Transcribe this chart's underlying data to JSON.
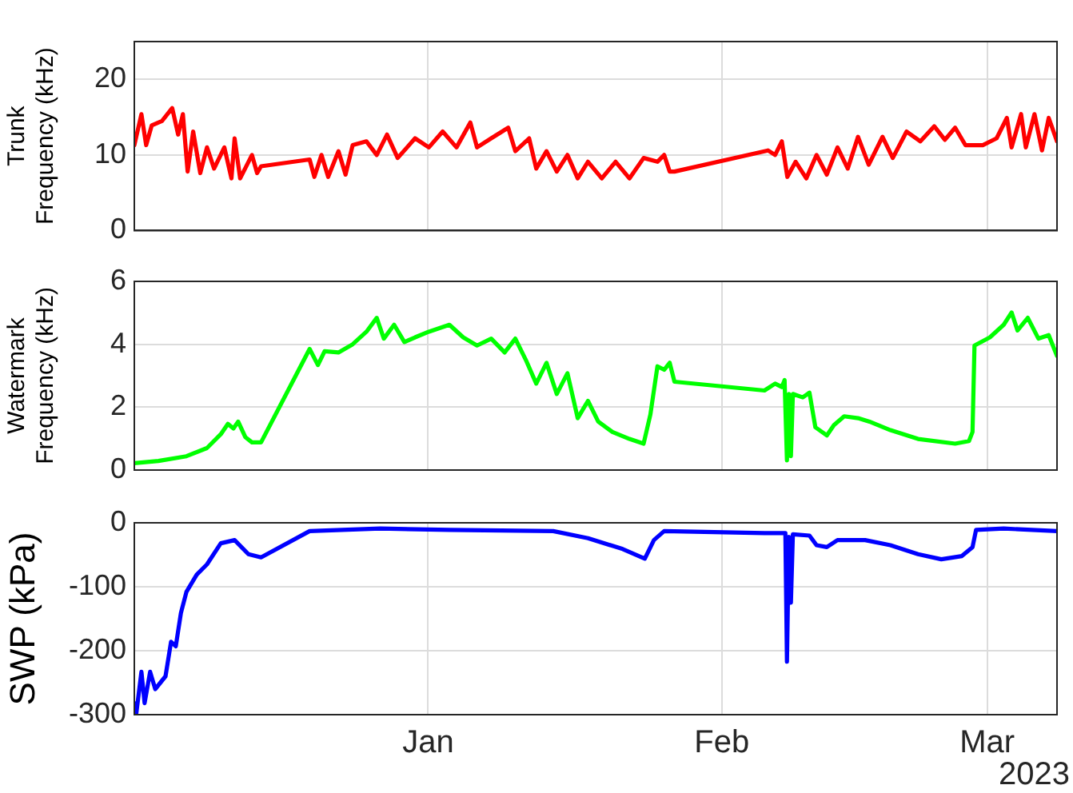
{
  "chart_data": [
    {
      "type": "line",
      "ylabel": "Trunk Frequency (kHz)",
      "xlim": [
        "2022-12-01",
        "2023-03-08T09:00"
      ],
      "xticks": [
        {
          "value": "2023-01-01",
          "label": null
        },
        {
          "value": "2023-02-01",
          "label": null
        },
        {
          "value": "2023-03-01",
          "label": null
        }
      ],
      "ylim": [
        0,
        25
      ],
      "yticks": [
        0,
        10,
        20
      ],
      "grid": true,
      "legend": false,
      "tick_labels": "y",
      "series": [
        {
          "color": "#ff0000",
          "x": [
            "2022-12-01T00:00",
            "2022-12-01T18:00",
            "2022-12-02T06:00",
            "2022-12-02T20:00",
            "2022-12-03T22:00",
            "2022-12-05T00:00",
            "2022-12-05T15:00",
            "2022-12-06T03:00",
            "2022-12-06T15:00",
            "2022-12-07T05:00",
            "2022-12-07T23:00",
            "2022-12-08T16:00",
            "2022-12-09T10:00",
            "2022-12-10T12:00",
            "2022-12-11T06:00",
            "2022-12-11T14:00",
            "2022-12-12T04:00",
            "2022-12-13T10:00",
            "2022-12-13T23:00",
            "2022-12-14T09:00",
            "2022-12-19T12:00",
            "2022-12-20T00:00",
            "2022-12-20T18:00",
            "2022-12-21T11:00",
            "2022-12-22T13:00",
            "2022-12-23T07:00",
            "2022-12-24T01:00",
            "2022-12-25T12:00",
            "2022-12-26T14:00",
            "2022-12-27T16:00",
            "2022-12-28T19:00",
            "2022-12-30T15:00",
            "2023-01-01T02:00",
            "2023-01-02T13:00",
            "2023-01-04T00:00",
            "2023-01-05T11:00",
            "2023-01-06T04:00",
            "2023-01-07T16:00",
            "2023-01-09T11:00",
            "2023-01-10T05:00",
            "2023-01-11T16:00",
            "2023-01-12T10:00",
            "2023-01-13T12:00",
            "2023-01-14T14:00",
            "2023-01-15T17:00",
            "2023-01-16T19:00",
            "2023-01-17T21:00",
            "2023-01-19T08:00",
            "2023-01-20T19:00",
            "2023-01-22T06:00",
            "2023-01-23T18:00",
            "2023-01-25T05:00",
            "2023-01-25T22:00",
            "2023-01-26T12:00",
            "2023-01-27T00:00",
            "2023-02-05T21:00",
            "2023-02-06T15:00",
            "2023-02-07T08:00",
            "2023-02-07T22:00",
            "2023-02-08T19:00",
            "2023-02-09T22:00",
            "2023-02-11T00:00",
            "2023-02-12T02:00",
            "2023-02-13T05:00",
            "2023-02-14T07:00",
            "2023-02-15T09:00",
            "2023-02-16T12:00",
            "2023-02-17T23:00",
            "2023-02-19T01:00",
            "2023-02-20T12:00",
            "2023-02-21T23:00",
            "2023-02-23T10:00",
            "2023-02-24T13:00",
            "2023-02-25T15:00",
            "2023-02-26T17:00",
            "2023-02-28T13:00",
            "2023-03-02T00:00",
            "2023-03-03T02:00",
            "2023-03-03T14:00",
            "2023-03-04T14:00",
            "2023-03-05T02:00",
            "2023-03-06T00:00",
            "2023-03-06T19:00",
            "2023-03-07T12:00",
            "2023-03-08T09:00"
          ],
          "values": [
            11.3,
            15.4,
            11.3,
            13.9,
            14.5,
            16.2,
            12.7,
            15.4,
            7.8,
            13.1,
            7.6,
            11,
            8.2,
            11,
            6.9,
            12.2,
            6.9,
            10,
            7.6,
            8.5,
            9.4,
            7.1,
            10,
            7.1,
            10.5,
            7.4,
            11.3,
            11.8,
            10,
            12.7,
            9.6,
            12.2,
            11,
            13.1,
            11,
            14.3,
            11,
            12.2,
            13.6,
            10.5,
            12.2,
            8.2,
            10.5,
            7.8,
            10,
            6.9,
            9.1,
            6.9,
            9.1,
            6.9,
            9.6,
            9.1,
            10,
            7.8,
            7.8,
            10.6,
            10,
            11.8,
            7.1,
            9.1,
            6.9,
            10,
            7.4,
            11,
            8.2,
            12.4,
            8.7,
            12.4,
            9.6,
            13.1,
            11.8,
            13.8,
            12,
            13.6,
            11.3,
            11.3,
            12.2,
            14.9,
            11,
            15.4,
            11,
            15.4,
            10.6,
            14.9,
            11.8
          ]
        }
      ]
    },
    {
      "type": "line",
      "ylabel": "Watermark Frequency (kHz)",
      "xlim": [
        "2022-12-01",
        "2023-03-08T09:00"
      ],
      "xticks": [
        {
          "value": "2023-01-01",
          "label": null
        },
        {
          "value": "2023-02-01",
          "label": null
        },
        {
          "value": "2023-03-01",
          "label": null
        }
      ],
      "ylim": [
        0,
        6
      ],
      "yticks": [
        0,
        2,
        4,
        6
      ],
      "grid": true,
      "legend": false,
      "tick_labels": "y",
      "series": [
        {
          "color": "#00ff00",
          "x": [
            "2022-12-01T00:00",
            "2022-12-03T13:00",
            "2022-12-06T12:00",
            "2022-12-08T16:00",
            "2022-12-10T03:00",
            "2022-12-10T21:00",
            "2022-12-11T11:00",
            "2022-12-11T23:00",
            "2022-12-12T17:00",
            "2022-12-13T10:00",
            "2022-12-14T09:00",
            "2022-12-19T12:00",
            "2022-12-20T09:00",
            "2022-12-21T02:00",
            "2022-12-22T13:00",
            "2022-12-24T01:00",
            "2022-12-25T12:00",
            "2022-12-26T14:00",
            "2022-12-27T08:00",
            "2022-12-28T10:00",
            "2022-12-29T12:00",
            "2022-12-30T15:00",
            "2023-01-01T02:00",
            "2023-01-03T06:00",
            "2023-01-04T17:00",
            "2023-01-06T04:00",
            "2023-01-07T16:00",
            "2023-01-09T02:00",
            "2023-01-10T05:00",
            "2023-01-11T07:00",
            "2023-01-12T10:00",
            "2023-01-13T12:00",
            "2023-01-14T14:00",
            "2023-01-15T17:00",
            "2023-01-16T19:00",
            "2023-01-17T21:00",
            "2023-01-18T23:00",
            "2023-01-20T11:00",
            "2023-01-22T06:00",
            "2023-01-23T18:00",
            "2023-01-24T11:00",
            "2023-01-25T05:00",
            "2023-01-25T22:00",
            "2023-01-26T12:00",
            "2023-01-27T00:00",
            "2023-02-05T12:00",
            "2023-02-06T15:00",
            "2023-02-07T08:00",
            "2023-02-07T15:00",
            "2023-02-07T21:00",
            "2023-02-08T02:00",
            "2023-02-08T07:00",
            "2023-02-08T12:00",
            "2023-02-09T13:00",
            "2023-02-10T06:00",
            "2023-02-10T21:00",
            "2023-02-12T02:00",
            "2023-02-12T20:00",
            "2023-02-13T22:00",
            "2023-02-15T09:00",
            "2023-02-16T14:00",
            "2023-02-18T19:00",
            "2023-02-21T17:00",
            "2023-02-25T15:00",
            "2023-02-27T02:00",
            "2023-02-27T11:00",
            "2023-02-27T16:00",
            "2023-03-01T07:00",
            "2023-03-02T18:00",
            "2023-03-03T14:00",
            "2023-03-04T05:00",
            "2023-03-05T07:00",
            "2023-03-06T10:00",
            "2023-03-07T12:00",
            "2023-03-08T09:00"
          ],
          "values": [
            0.22,
            0.29,
            0.44,
            0.7,
            1.14,
            1.47,
            1.32,
            1.54,
            1.05,
            0.88,
            0.88,
            3.85,
            3.34,
            3.78,
            3.74,
            4.0,
            4.4,
            4.84,
            4.18,
            4.62,
            4.07,
            4.22,
            4.4,
            4.62,
            4.22,
            3.96,
            4.18,
            3.74,
            4.18,
            3.52,
            2.75,
            3.41,
            2.42,
            3.08,
            1.65,
            2.2,
            1.54,
            1.21,
            0.99,
            0.84,
            1.76,
            3.3,
            3.19,
            3.41,
            2.81,
            2.53,
            2.75,
            2.64,
            2.86,
            0.31,
            2.42,
            0.44,
            2.42,
            2.31,
            2.46,
            1.36,
            1.1,
            1.43,
            1.71,
            1.65,
            1.54,
            1.27,
            0.99,
            0.84,
            0.92,
            1.21,
            3.96,
            4.22,
            4.62,
            5.01,
            4.44,
            4.84,
            4.18,
            4.29,
            3.63
          ]
        }
      ]
    },
    {
      "type": "line",
      "ylabel": "SWP (kPa)",
      "xlim": [
        "2022-12-01",
        "2023-03-08T09:00"
      ],
      "xticks": [
        {
          "value": "2023-01-01",
          "label": "Jan"
        },
        {
          "value": "2023-02-01",
          "label": "Feb"
        },
        {
          "value": "2023-03-01",
          "label": "Mar"
        }
      ],
      "ylim": [
        -300,
        0
      ],
      "yticks": [
        -300,
        -200,
        -100,
        0
      ],
      "grid": true,
      "legend": false,
      "annotations": [
        "2023"
      ],
      "series": [
        {
          "color": "#0000ff",
          "x": [
            "2022-12-01T00:00",
            "2022-12-01T05:00",
            "2022-12-01T18:00",
            "2022-12-02T02:00",
            "2022-12-02T16:00",
            "2022-12-03T05:00",
            "2022-12-04T07:00",
            "2022-12-04T21:00",
            "2022-12-05T09:00",
            "2022-12-05T22:00",
            "2022-12-06T12:00",
            "2022-12-07T14:00",
            "2022-12-08T16:00",
            "2022-12-10T03:00",
            "2022-12-11T14:00",
            "2022-12-13T01:00",
            "2022-12-14T09:00",
            "2022-12-19T12:00",
            "2022-12-26T23:00",
            "2023-01-03T06:00",
            "2023-01-14T05:00",
            "2023-01-17T21:00",
            "2023-01-21T13:00",
            "2023-01-23T21:00",
            "2023-01-24T20:00",
            "2023-01-25T22:00",
            "2023-02-05T12:00",
            "2023-02-07T17:00",
            "2023-02-07T21:00",
            "2023-02-08T02:00",
            "2023-02-08T07:00",
            "2023-02-08T12:00",
            "2023-02-10T06:00",
            "2023-02-11T00:00",
            "2023-02-12T02:00",
            "2023-02-13T05:00",
            "2023-02-16T03:00",
            "2023-02-18T19:00",
            "2023-02-21T17:00",
            "2023-02-24T04:00",
            "2023-02-26T08:00",
            "2023-02-27T11:00",
            "2023-02-27T20:00",
            "2023-03-02T18:00",
            "2023-03-08T09:00"
          ],
          "values": [
            -282,
            -298,
            -233,
            -282,
            -233,
            -260,
            -240,
            -186,
            -193,
            -141,
            -108,
            -81,
            -65,
            -32,
            -27,
            -49,
            -54,
            -13,
            -9,
            -11,
            -13,
            -24,
            -41,
            -56,
            -27,
            -13,
            -16,
            -16,
            -217,
            -22,
            -125,
            -18,
            -20,
            -35,
            -38,
            -27,
            -27,
            -35,
            -49,
            -57,
            -52,
            -38,
            -11,
            -9,
            -13
          ]
        }
      ]
    }
  ]
}
